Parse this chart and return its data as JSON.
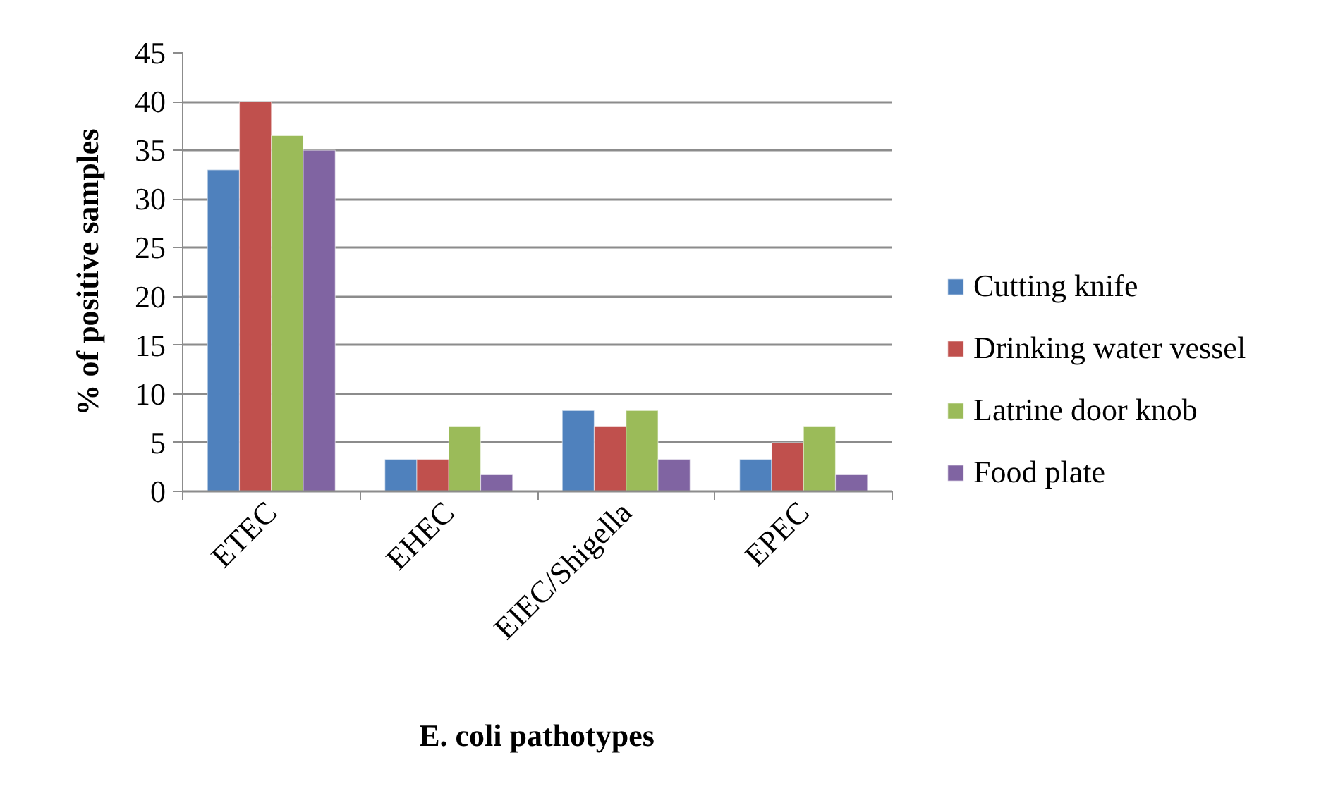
{
  "chart_data": {
    "type": "bar",
    "categories": [
      "ETEC",
      "EHEC",
      "EIEC/Shigella",
      "EPEC"
    ],
    "xlabel": "E. coli pathotypes",
    "ylabel": "% of positive samples",
    "ylim": [
      0,
      45
    ],
    "yticks": [
      0,
      5,
      10,
      15,
      20,
      25,
      30,
      35,
      40,
      45
    ],
    "grid": "y",
    "legend": "right",
    "series": [
      {
        "name": "Cutting knife",
        "color": "#4f81bd",
        "values": [
          33,
          3.3,
          8.3,
          3.3
        ]
      },
      {
        "name": "Drinking water vessel",
        "color": "#c0504d",
        "values": [
          40,
          3.3,
          6.7,
          5
        ]
      },
      {
        "name": "Latrine door knob",
        "color": "#9bbb59",
        "values": [
          36.5,
          6.7,
          8.3,
          6.7
        ]
      },
      {
        "name": "Food plate",
        "color": "#8064a2",
        "values": [
          35,
          1.7,
          3.3,
          1.7
        ]
      }
    ]
  }
}
